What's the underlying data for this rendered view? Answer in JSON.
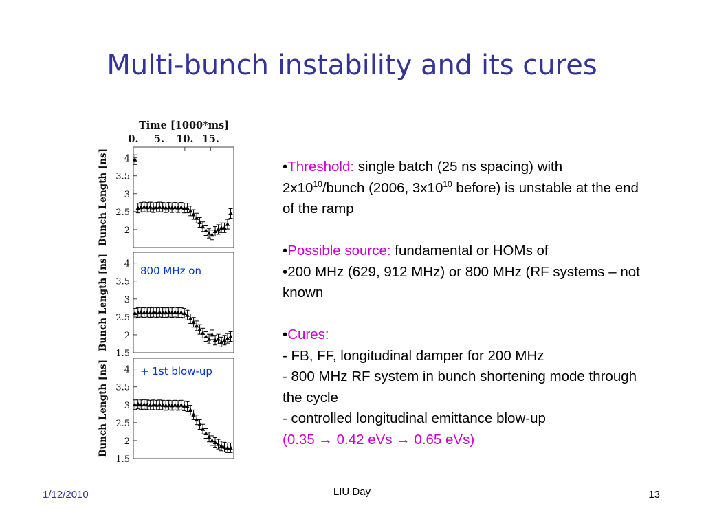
{
  "slide": {
    "title": "Multi-bunch instability and its cures",
    "body": {
      "threshold_label": "Threshold:",
      "threshold_text_1": " single batch (25 ns spacing) with 2x10",
      "threshold_exp_1": "10",
      "threshold_text_2": "/bunch (2006, 3x10",
      "threshold_exp_2": "10",
      "threshold_text_3": "  before) is unstable at the end of the ramp",
      "source_label": "Possible source:",
      "source_text": "  fundamental or HOMs of",
      "source_line2": "200 MHz (629, 912 MHz) or 800 MHz (RF systems – not known",
      "cures_label": "Cures:",
      "cure_1": "- FB, FF, longitudinal damper for 200 MHz",
      "cure_2": "- 800 MHz RF system in bunch shortening mode through the cycle",
      "cure_3": "- controlled longitudinal emittance blow-up",
      "cure_4": "(0.35 → 0.42 eVs → 0.65 eVs)"
    },
    "footer": {
      "date": "1/12/2010",
      "center": "LIU Day",
      "page": "13"
    }
  },
  "colors": {
    "title": "#333399",
    "highlight": "#cc00cc",
    "annotation": "#0033cc"
  },
  "chart_data": [
    {
      "type": "scatter",
      "top_axis_label": "Time [1000*ms]",
      "top_ticks": [
        "0.",
        "5.",
        "10.",
        "15."
      ],
      "xlim": [
        0,
        19.5
      ],
      "ylabel": "Bunch Length [ns]",
      "ylim": [
        1.5,
        4.3
      ],
      "yticks": [
        "4",
        "3.5",
        "3",
        "2.5",
        "2"
      ],
      "annotation": "",
      "points": [
        [
          0.3,
          3.95
        ],
        [
          0.9,
          2.6
        ],
        [
          1.5,
          2.62
        ],
        [
          2.1,
          2.63
        ],
        [
          2.7,
          2.62
        ],
        [
          3.3,
          2.63
        ],
        [
          3.9,
          2.61
        ],
        [
          4.5,
          2.62
        ],
        [
          5.1,
          2.63
        ],
        [
          5.7,
          2.62
        ],
        [
          6.3,
          2.61
        ],
        [
          6.9,
          2.62
        ],
        [
          7.5,
          2.61
        ],
        [
          8.1,
          2.62
        ],
        [
          8.7,
          2.61
        ],
        [
          9.3,
          2.62
        ],
        [
          9.9,
          2.6
        ],
        [
          10.5,
          2.6
        ],
        [
          11.1,
          2.52
        ],
        [
          11.7,
          2.42
        ],
        [
          12.3,
          2.32
        ],
        [
          12.9,
          2.2
        ],
        [
          13.5,
          2.08
        ],
        [
          14.1,
          1.97
        ],
        [
          14.7,
          1.9
        ],
        [
          15.3,
          1.85
        ],
        [
          15.9,
          1.95
        ],
        [
          16.5,
          2.0
        ],
        [
          17.1,
          2.05
        ],
        [
          17.7,
          2.05
        ],
        [
          18.3,
          2.15
        ],
        [
          18.9,
          2.45
        ]
      ]
    },
    {
      "type": "scatter",
      "ylabel": "Bunch Length [ns]",
      "xlim": [
        0,
        19.5
      ],
      "ylim": [
        1.5,
        4.3
      ],
      "yticks": [
        "4",
        "3.5",
        "3",
        "2.5",
        "2",
        "1.5"
      ],
      "annotation": "800 MHz on",
      "points": [
        [
          0.3,
          2.6
        ],
        [
          0.9,
          2.62
        ],
        [
          1.5,
          2.63
        ],
        [
          2.1,
          2.62
        ],
        [
          2.7,
          2.63
        ],
        [
          3.3,
          2.62
        ],
        [
          3.9,
          2.63
        ],
        [
          4.5,
          2.62
        ],
        [
          5.1,
          2.63
        ],
        [
          5.7,
          2.62
        ],
        [
          6.3,
          2.62
        ],
        [
          6.9,
          2.63
        ],
        [
          7.5,
          2.62
        ],
        [
          8.1,
          2.63
        ],
        [
          8.7,
          2.62
        ],
        [
          9.3,
          2.62
        ],
        [
          9.9,
          2.6
        ],
        [
          10.5,
          2.55
        ],
        [
          11.1,
          2.45
        ],
        [
          11.7,
          2.35
        ],
        [
          12.3,
          2.25
        ],
        [
          12.9,
          2.15
        ],
        [
          13.5,
          2.05
        ],
        [
          14.1,
          1.95
        ],
        [
          14.7,
          1.88
        ],
        [
          15.3,
          2.0
        ],
        [
          15.9,
          1.85
        ],
        [
          16.5,
          1.88
        ],
        [
          17.1,
          1.8
        ],
        [
          17.7,
          1.85
        ],
        [
          18.3,
          1.9
        ],
        [
          18.9,
          1.95
        ]
      ]
    },
    {
      "type": "scatter",
      "ylabel": "Bunch Length [ns]",
      "xlim": [
        0,
        19.5
      ],
      "ylim": [
        1.5,
        4.3
      ],
      "yticks": [
        "4",
        "3.5",
        "3",
        "2.5",
        "2",
        "1.5"
      ],
      "annotation": "+ 1st blow-up",
      "points": [
        [
          0.3,
          3.0
        ],
        [
          0.9,
          3.02
        ],
        [
          1.5,
          3.0
        ],
        [
          2.1,
          3.01
        ],
        [
          2.7,
          3.0
        ],
        [
          3.3,
          2.99
        ],
        [
          3.9,
          3.0
        ],
        [
          4.5,
          2.99
        ],
        [
          5.1,
          3.0
        ],
        [
          5.7,
          2.99
        ],
        [
          6.3,
          2.98
        ],
        [
          6.9,
          2.99
        ],
        [
          7.5,
          2.98
        ],
        [
          8.1,
          2.99
        ],
        [
          8.7,
          2.98
        ],
        [
          9.3,
          2.99
        ],
        [
          9.9,
          2.97
        ],
        [
          10.5,
          2.95
        ],
        [
          11.1,
          2.85
        ],
        [
          11.7,
          2.72
        ],
        [
          12.3,
          2.58
        ],
        [
          12.9,
          2.45
        ],
        [
          13.5,
          2.32
        ],
        [
          14.1,
          2.2
        ],
        [
          14.7,
          2.1
        ],
        [
          15.3,
          2.0
        ],
        [
          15.9,
          1.95
        ],
        [
          16.5,
          1.9
        ],
        [
          17.1,
          1.85
        ],
        [
          17.7,
          1.82
        ],
        [
          18.3,
          1.8
        ],
        [
          18.9,
          1.8
        ]
      ]
    }
  ]
}
